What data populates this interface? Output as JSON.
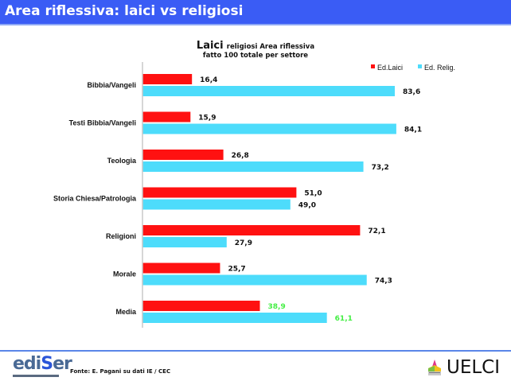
{
  "header": {
    "title": "Area riflessiva: laici vs religiosi"
  },
  "chart_data": {
    "type": "bar",
    "orientation": "horizontal",
    "title_main": "Laici",
    "title_rest": "religiosi Area riflessiva",
    "subtitle": "fatto 100 totale per settore",
    "categories": [
      "Bibbia/Vangeli",
      "Testi Bibbia/Vangeli",
      "Teologia",
      "Storia Chiesa/Patrologia",
      "Religioni",
      "Morale",
      "Media"
    ],
    "series": [
      {
        "name": "Ed.Laici",
        "color": "#ff1111",
        "values": [
          16.4,
          15.9,
          26.8,
          51.0,
          72.1,
          25.7,
          38.9
        ],
        "labels": [
          "16,4",
          "15,9",
          "26,8",
          "51,0",
          "72,1",
          "25,7",
          "38,9"
        ]
      },
      {
        "name": "Ed. Relig.",
        "color": "#4ddcfb",
        "values": [
          83.6,
          84.1,
          73.2,
          49.0,
          27.9,
          74.3,
          61.1
        ],
        "labels": [
          "83,6",
          "84,1",
          "73,2",
          "49,0",
          "27,9",
          "74,3",
          "61,1"
        ]
      }
    ],
    "highlight_category": "Media",
    "highlight_label_color": "#44ee44",
    "xlim": [
      0,
      100
    ],
    "grid": false,
    "legend_position": "top-right",
    "xlabel": "",
    "ylabel": ""
  },
  "footer": {
    "source": "Fonte: E. Pagani su dati IE / CEC",
    "logo_left": {
      "main": "edi",
      "accent": "S",
      "rest": "er"
    },
    "logo_right": "UELCI"
  }
}
